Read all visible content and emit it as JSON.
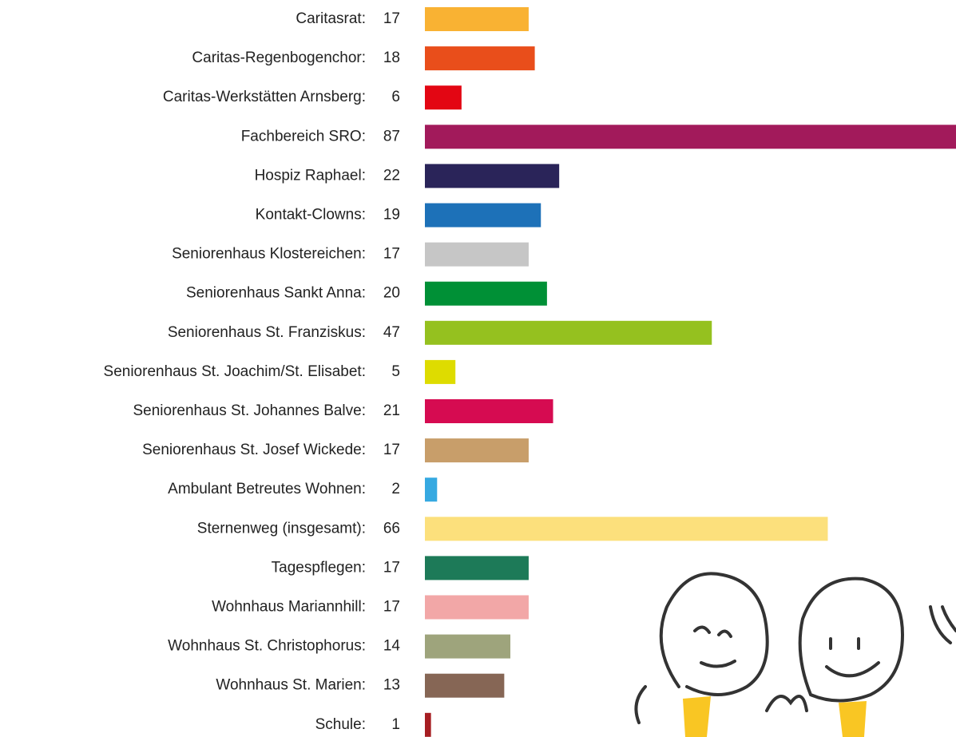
{
  "chart_data": {
    "type": "bar",
    "orientation": "horizontal",
    "categories": [
      "Caritasrat:",
      "Caritas-Regenbogenchor:",
      "Caritas-Werkstätten Arnsberg:",
      "Fachbereich SRO:",
      "Hospiz Raphael:",
      "Kontakt-Clowns:",
      "Seniorenhaus Klostereichen:",
      "Seniorenhaus Sankt Anna:",
      "Seniorenhaus St. Franziskus:",
      "Seniorenhaus St. Joachim/St. Elisabet:",
      "Seniorenhaus St. Johannes Balve:",
      "Seniorenhaus St. Josef  Wickede:",
      "Ambulant Betreutes Wohnen:",
      "Sternenweg (insgesamt):",
      "Tagespflegen:",
      "Wohnhaus Mariannhill:",
      "Wohnhaus St. Christophorus:",
      "Wohnhaus St. Marien:",
      "Schule:"
    ],
    "values": [
      17,
      18,
      6,
      87,
      22,
      19,
      17,
      20,
      47,
      5,
      21,
      17,
      2,
      66,
      17,
      17,
      14,
      13,
      1
    ],
    "colors": [
      "#f9b233",
      "#e94e1b",
      "#e30613",
      "#a21a5b",
      "#2a2459",
      "#1d71b8",
      "#c6c6c6",
      "#009036",
      "#95c11f",
      "#dedc00",
      "#d60b51",
      "#c89e6a",
      "#36a9e1",
      "#fce07c",
      "#1d7a58",
      "#f2a7a7",
      "#9ea47c",
      "#866655",
      "#a61e22"
    ]
  }
}
